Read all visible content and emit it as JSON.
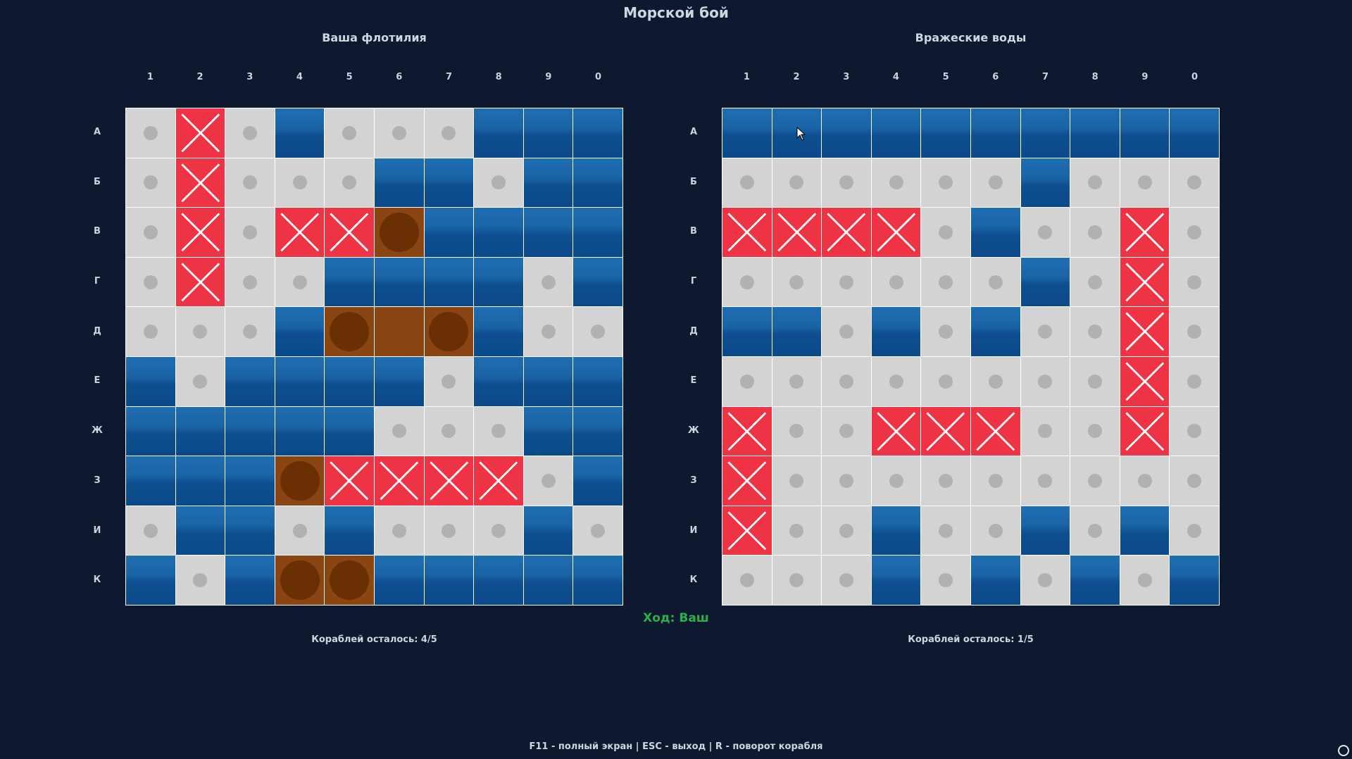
{
  "title": "Морской бой",
  "columns": [
    "1",
    "2",
    "3",
    "4",
    "5",
    "6",
    "7",
    "8",
    "9",
    "0"
  ],
  "rows": [
    "А",
    "Б",
    "В",
    "Г",
    "Д",
    "Е",
    "Ж",
    "З",
    "И",
    "К"
  ],
  "player": {
    "title": "Ваша флотилия",
    "remaining": "Кораблей осталось: 4/5",
    "grid": [
      "MXMWMMMWWW",
      "MXMMMWWMWW",
      "MXMXXSWWWW",
      "MXMMWWWWMW",
      "MMMWSPSWMM",
      "WMWWWWMWWW",
      "WWWWWMMMWW",
      "WWWSXXXXMW",
      "MWWMWMMMWM",
      "WMWSSWWWWW"
    ]
  },
  "enemy": {
    "title": "Вражеские воды",
    "remaining": "Кораблей осталось: 1/5",
    "grid": [
      "WWWWWWWWWW",
      "MMMMMMWMMM",
      "XXXXMWMMXM",
      "MMMMMMWMXM",
      "WWMWMWMMXM",
      "MMMMMMMMXM",
      "XMMXXXMMXM",
      "XMMMMMMMMM",
      "XMMWMMWMWM",
      "MMMWMWMWMW"
    ]
  },
  "turn_label": "Ход: Ваш",
  "hint": "F11 - полный экран | ESC - выход | R - поворот корабля",
  "legend_codes": {
    "W": "water-unknown",
    "M": "miss",
    "X": "hit",
    "S": "ship-marker",
    "P": "ship"
  },
  "colors": {
    "background": "#0e1930",
    "water": "#1a63a6",
    "miss": "#d3d3d3",
    "hit": "#ee3344",
    "ship": "#8b4513",
    "turn": "#27b34a"
  }
}
